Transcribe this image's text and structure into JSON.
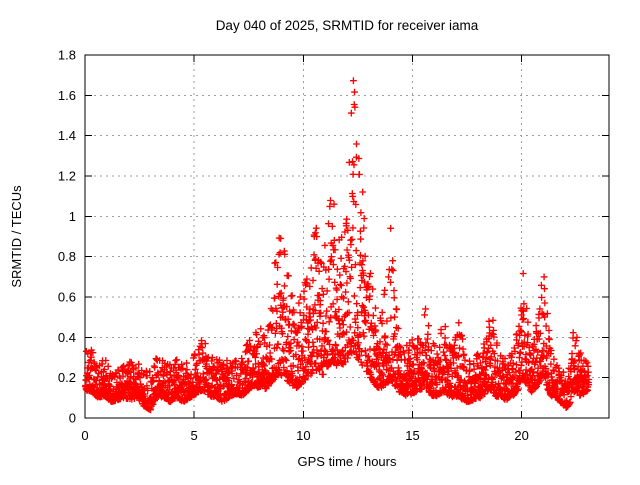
{
  "page": {
    "background": "#ffffff",
    "window_size": "640x480"
  },
  "chart_data": {
    "type": "scatter",
    "title": "Day 040 of 2025, SRMTID for receiver iama",
    "xlabel": "GPS time / hours",
    "ylabel": "SRMTID / TECUs",
    "series_name": "SRMTID",
    "xlim": [
      0,
      24
    ],
    "ylim": [
      0,
      1.8
    ],
    "xticks": [
      {
        "v": 0,
        "label": "0"
      },
      {
        "v": 5,
        "label": "5"
      },
      {
        "v": 10,
        "label": "10"
      },
      {
        "v": 15,
        "label": "15"
      },
      {
        "v": 20,
        "label": "20"
      }
    ],
    "yticks": [
      {
        "v": 0,
        "label": "0"
      },
      {
        "v": 0.2,
        "label": "0.2"
      },
      {
        "v": 0.4,
        "label": "0.4"
      },
      {
        "v": 0.6,
        "label": "0.6"
      },
      {
        "v": 0.8,
        "label": "0.8"
      },
      {
        "v": 1,
        "label": "1"
      },
      {
        "v": 1.2,
        "label": "1.2"
      },
      {
        "v": 1.4,
        "label": "1.4"
      },
      {
        "v": 1.6,
        "label": "1.6"
      },
      {
        "v": 1.8,
        "label": "1.8"
      }
    ],
    "grid": true,
    "legend": "none",
    "marker": "plus",
    "colors": {
      "points": "#ff0000",
      "grid": "#9e9e9e",
      "axis": "#000000",
      "text": "#000000",
      "background": "#ffffff"
    },
    "data_span_hours": [
      0.02,
      23.08
    ],
    "envelope_h_lo_hi": [
      [
        0.0,
        0.14,
        0.33
      ],
      [
        0.3,
        0.13,
        0.35
      ],
      [
        0.6,
        0.1,
        0.27
      ],
      [
        0.9,
        0.11,
        0.3
      ],
      [
        1.2,
        0.08,
        0.25
      ],
      [
        1.5,
        0.09,
        0.24
      ],
      [
        1.8,
        0.1,
        0.28
      ],
      [
        2.1,
        0.09,
        0.28
      ],
      [
        2.4,
        0.1,
        0.28
      ],
      [
        2.7,
        0.06,
        0.23
      ],
      [
        3.0,
        0.04,
        0.24
      ],
      [
        3.3,
        0.11,
        0.31
      ],
      [
        3.6,
        0.1,
        0.28
      ],
      [
        3.9,
        0.08,
        0.27
      ],
      [
        4.2,
        0.1,
        0.29
      ],
      [
        4.5,
        0.08,
        0.26
      ],
      [
        4.8,
        0.1,
        0.3
      ],
      [
        5.1,
        0.12,
        0.33
      ],
      [
        5.4,
        0.14,
        0.4
      ],
      [
        5.7,
        0.11,
        0.33
      ],
      [
        6.0,
        0.1,
        0.31
      ],
      [
        6.3,
        0.08,
        0.28
      ],
      [
        6.6,
        0.1,
        0.29
      ],
      [
        6.9,
        0.12,
        0.31
      ],
      [
        7.2,
        0.11,
        0.3
      ],
      [
        7.5,
        0.14,
        0.4
      ],
      [
        7.7,
        0.16,
        0.48
      ],
      [
        7.9,
        0.15,
        0.43
      ],
      [
        8.1,
        0.16,
        0.45
      ],
      [
        8.3,
        0.14,
        0.4
      ],
      [
        8.5,
        0.17,
        0.55
      ],
      [
        8.7,
        0.2,
        0.8
      ],
      [
        8.9,
        0.22,
        0.98
      ],
      [
        9.1,
        0.2,
        0.85
      ],
      [
        9.3,
        0.18,
        0.75
      ],
      [
        9.5,
        0.16,
        0.6
      ],
      [
        9.7,
        0.15,
        0.55
      ],
      [
        9.9,
        0.17,
        0.65
      ],
      [
        10.1,
        0.19,
        0.7
      ],
      [
        10.3,
        0.21,
        0.8
      ],
      [
        10.55,
        0.24,
        1.0
      ],
      [
        10.75,
        0.2,
        0.8
      ],
      [
        10.95,
        0.22,
        0.85
      ],
      [
        11.15,
        0.26,
        1.0
      ],
      [
        11.35,
        0.28,
        1.2
      ],
      [
        11.55,
        0.24,
        0.95
      ],
      [
        11.75,
        0.26,
        0.9
      ],
      [
        11.95,
        0.28,
        1.05
      ],
      [
        12.1,
        0.3,
        1.4
      ],
      [
        12.3,
        0.33,
        1.7
      ],
      [
        12.45,
        0.3,
        1.45
      ],
      [
        12.6,
        0.28,
        1.35
      ],
      [
        12.8,
        0.24,
        1.0
      ],
      [
        13.0,
        0.21,
        0.8
      ],
      [
        13.2,
        0.18,
        0.62
      ],
      [
        13.4,
        0.15,
        0.5
      ],
      [
        13.6,
        0.15,
        0.55
      ],
      [
        13.8,
        0.17,
        0.7
      ],
      [
        14.0,
        0.19,
        0.95
      ],
      [
        14.2,
        0.16,
        0.6
      ],
      [
        14.4,
        0.13,
        0.45
      ],
      [
        14.7,
        0.11,
        0.37
      ],
      [
        15.0,
        0.12,
        0.4
      ],
      [
        15.3,
        0.14,
        0.44
      ],
      [
        15.6,
        0.15,
        0.58
      ],
      [
        15.9,
        0.11,
        0.38
      ],
      [
        16.1,
        0.11,
        0.36
      ],
      [
        16.4,
        0.13,
        0.5
      ],
      [
        16.7,
        0.11,
        0.4
      ],
      [
        16.9,
        0.1,
        0.36
      ],
      [
        17.1,
        0.11,
        0.5
      ],
      [
        17.3,
        0.09,
        0.4
      ],
      [
        17.5,
        0.08,
        0.28
      ],
      [
        17.8,
        0.09,
        0.3
      ],
      [
        18.1,
        0.1,
        0.33
      ],
      [
        18.4,
        0.13,
        0.44
      ],
      [
        18.6,
        0.14,
        0.55
      ],
      [
        18.8,
        0.11,
        0.42
      ],
      [
        19.0,
        0.1,
        0.36
      ],
      [
        19.3,
        0.09,
        0.28
      ],
      [
        19.6,
        0.11,
        0.34
      ],
      [
        19.85,
        0.14,
        0.48
      ],
      [
        20.05,
        0.2,
        0.74
      ],
      [
        20.25,
        0.16,
        0.52
      ],
      [
        20.45,
        0.13,
        0.38
      ],
      [
        20.65,
        0.15,
        0.45
      ],
      [
        20.85,
        0.18,
        0.6
      ],
      [
        21.0,
        0.22,
        0.81
      ],
      [
        21.15,
        0.15,
        0.55
      ],
      [
        21.35,
        0.11,
        0.34
      ],
      [
        21.6,
        0.1,
        0.3
      ],
      [
        21.85,
        0.07,
        0.24
      ],
      [
        22.05,
        0.05,
        0.2
      ],
      [
        22.2,
        0.07,
        0.28
      ],
      [
        22.35,
        0.12,
        0.44
      ],
      [
        22.5,
        0.14,
        0.48
      ],
      [
        22.65,
        0.11,
        0.34
      ],
      [
        22.85,
        0.12,
        0.3
      ],
      [
        23.05,
        0.14,
        0.27
      ]
    ],
    "notable_peaks_h_v": [
      [
        8.9,
        0.98
      ],
      [
        10.55,
        1.0
      ],
      [
        11.35,
        1.2
      ],
      [
        12.3,
        1.7
      ],
      [
        12.6,
        1.35
      ],
      [
        14.0,
        0.95
      ],
      [
        15.6,
        0.58
      ],
      [
        16.4,
        0.5
      ],
      [
        17.1,
        0.5
      ],
      [
        18.6,
        0.55
      ],
      [
        20.05,
        0.74
      ],
      [
        21.0,
        0.81
      ],
      [
        22.5,
        0.48
      ]
    ],
    "render": {
      "seed": 20250409,
      "points_per_hour": 120,
      "skew": 2.0
    }
  }
}
